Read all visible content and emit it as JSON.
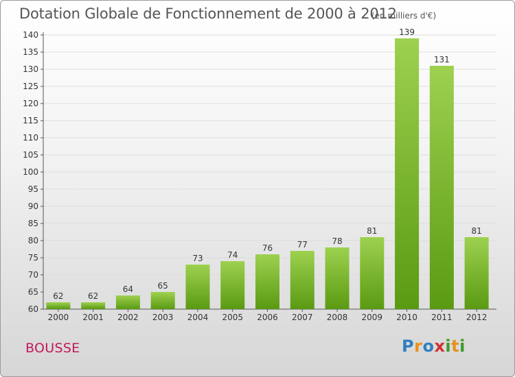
{
  "header": {
    "title": "Dotation Globale de Fonctionnement de 2000 à 2012",
    "unit": "(en milliers d'€)"
  },
  "footer": {
    "commune": "BOUSSE",
    "logo": "Proxiti"
  },
  "colors": {
    "bar_top": "#9dd14f",
    "bar_bottom": "#5a9a12",
    "gridline": "#dddddd",
    "commune_text": "#c2185b"
  },
  "chart_data": {
    "type": "bar",
    "title": "Dotation Globale de Fonctionnement de 2000 à 2012",
    "subtitle": "(en milliers d'€)",
    "categories": [
      "2000",
      "2001",
      "2002",
      "2003",
      "2004",
      "2005",
      "2006",
      "2007",
      "2008",
      "2009",
      "2010",
      "2011",
      "2012"
    ],
    "values": [
      62,
      62,
      64,
      65,
      73,
      74,
      76,
      77,
      78,
      81,
      139,
      131,
      81
    ],
    "ylim": [
      60,
      140
    ],
    "yticks": [
      60,
      65,
      70,
      75,
      80,
      85,
      90,
      95,
      100,
      105,
      110,
      115,
      120,
      125,
      130,
      135,
      140
    ],
    "grid": true,
    "data_labels": true
  }
}
